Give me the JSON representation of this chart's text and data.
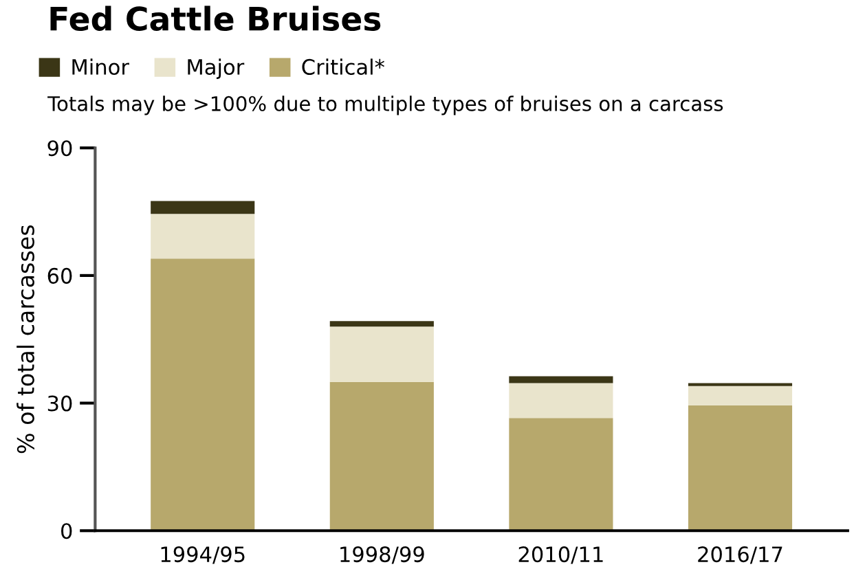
{
  "chart_data": {
    "type": "bar",
    "title": "Fed Cattle Bruises",
    "subtitle": "Totals may be >100% due to multiple types of bruises on a carcass",
    "ylabel": "% of total carcasses",
    "categories": [
      "1994/95",
      "1998/99",
      "2010/11",
      "2016/17"
    ],
    "stacked": true,
    "series": [
      {
        "name": "Critical*",
        "color": "#b7a86c",
        "values": [
          64,
          35,
          26.5,
          29.5
        ]
      },
      {
        "name": "Major",
        "color": "#e9e4cc",
        "values": [
          10.5,
          13,
          8.2,
          4.5
        ]
      },
      {
        "name": "Minor",
        "color": "#3b3616",
        "values": [
          3,
          1.3,
          1.6,
          0.7
        ]
      }
    ],
    "ylim": [
      0,
      90
    ],
    "yticks": [
      0,
      30,
      60,
      90
    ],
    "grid": false,
    "legend": "top left"
  }
}
